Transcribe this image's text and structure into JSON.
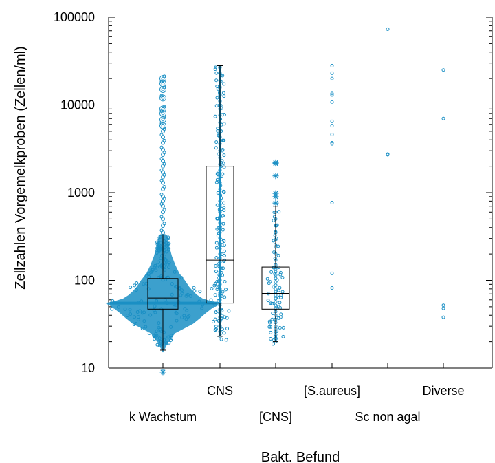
{
  "chart_data": {
    "type": "box",
    "title": "",
    "xlabel": "Bakt. Befund",
    "ylabel": "Zellzahlen Vorgemelkproben (Zellen/ml)",
    "yscale": "log",
    "ylim": [
      10,
      100000
    ],
    "yticks": [
      "10",
      "100",
      "1000",
      "10000",
      "100000"
    ],
    "grid": false,
    "colors": {
      "points": "#1a8fc4",
      "box": "#000000",
      "axis": "#000000"
    },
    "categories": [
      "k Wachstum",
      "CNS",
      "[CNS]",
      "[S.aureus]",
      "Sc non agal",
      "Diverse"
    ],
    "series": [
      {
        "category": "k Wachstum",
        "box": {
          "min": 16,
          "q1": 47,
          "median": 63,
          "q3": 105,
          "max": 330
        },
        "outliers_far": [
          9
        ],
        "dense_points": true,
        "outliers": [
          350,
          420,
          500,
          600,
          700,
          800,
          900,
          1100,
          1300,
          1500,
          1700,
          2000,
          2300,
          2700,
          3100,
          3700,
          4300,
          5000,
          5800,
          6800,
          8000,
          9000,
          12000,
          15000,
          17500,
          20000
        ]
      },
      {
        "category": "CNS",
        "box": {
          "min": 23,
          "q1": 55,
          "median": 170,
          "q3": 2000,
          "max": 28000
        },
        "outliers_far": [],
        "dense_points": true,
        "points": [
          23,
          26,
          30,
          34,
          38,
          42,
          47,
          52,
          55,
          60,
          66,
          72,
          80,
          90,
          100,
          112,
          125,
          140,
          160,
          180,
          200,
          230,
          260,
          300,
          350,
          400,
          460,
          530,
          600,
          700,
          800,
          950,
          1100,
          1300,
          1500,
          1800,
          2100,
          2500,
          3000,
          3600,
          4300,
          5200,
          6300,
          7600,
          9000,
          11000,
          13000,
          16000,
          19000,
          23000,
          27000
        ]
      },
      {
        "category": "[CNS]",
        "box": {
          "min": 20,
          "q1": 47,
          "median": 71,
          "q3": 142,
          "max": 700
        },
        "outliers_far": [
          760,
          900,
          980,
          1550,
          2150,
          2200
        ],
        "dense_points": false,
        "points": [
          20,
          22,
          24,
          26,
          28,
          30,
          33,
          36,
          40,
          44,
          48,
          52,
          57,
          62,
          68,
          74,
          80,
          88,
          96,
          105,
          115,
          125,
          135,
          150,
          170,
          200,
          240,
          290,
          350,
          420,
          500,
          600
        ]
      },
      {
        "category": "[S.aureus]",
        "box": null,
        "points": [
          82,
          120,
          770,
          3600,
          3700,
          4600,
          5800,
          6500,
          10800,
          13000,
          13500,
          20000,
          23000,
          28000
        ]
      },
      {
        "category": "Sc non agal",
        "box": null,
        "points": [
          2700,
          2750,
          73000
        ]
      },
      {
        "category": "Diverse",
        "box": null,
        "points": [
          38,
          48,
          52,
          7000,
          25000
        ]
      }
    ]
  }
}
